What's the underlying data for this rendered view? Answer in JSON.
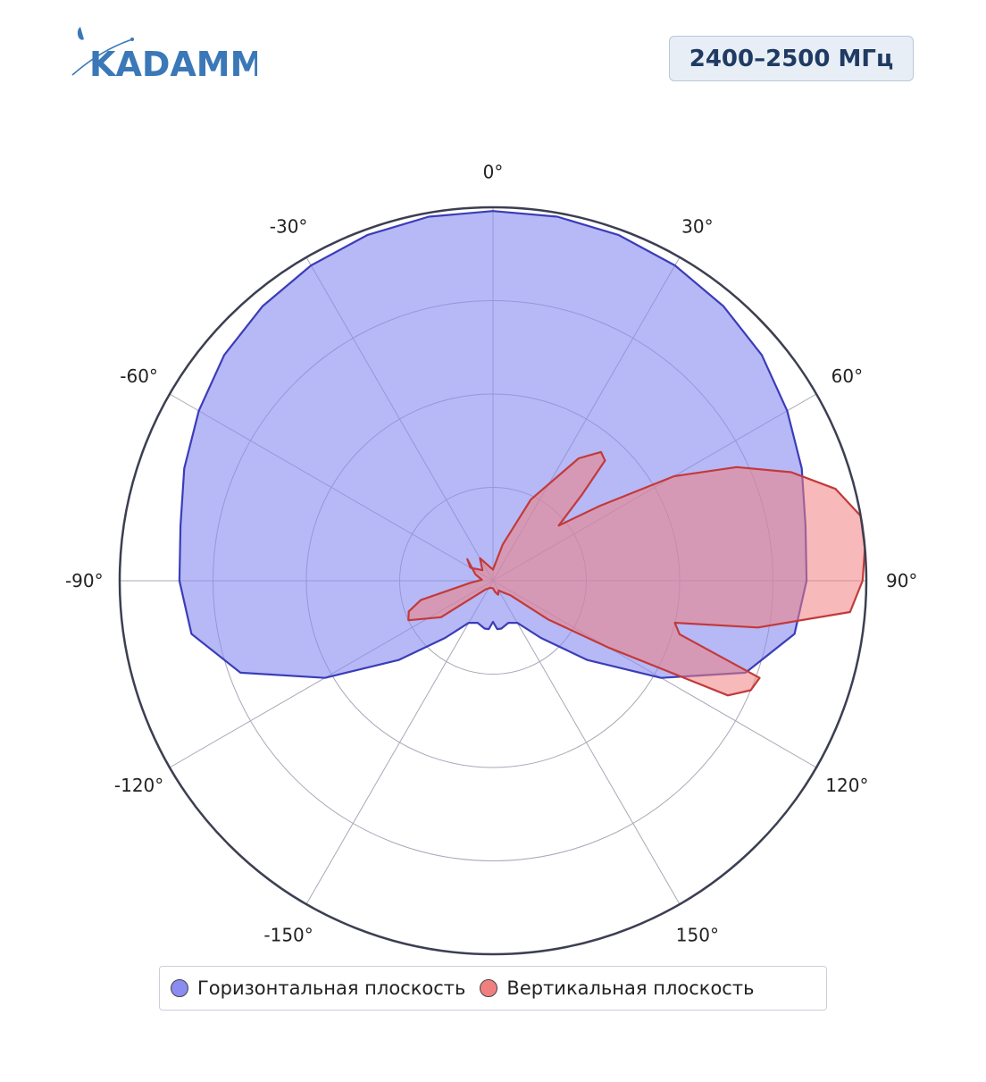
{
  "header": {
    "logo_text": "KADAMM",
    "frequency_label": "2400–2500 МГц"
  },
  "colors": {
    "horizontal_fill": "#8a8cf0",
    "horizontal_line": "#3a3db8",
    "vertical_fill": "#f08080",
    "vertical_line": "#c23a3a",
    "logo": "#3a78b8"
  },
  "chart_data": {
    "type": "polar-area",
    "title": "",
    "angular_unit": "deg",
    "angular_direction": "clockwise",
    "zero_at": "top",
    "angular_ticks": [
      0,
      30,
      60,
      90,
      120,
      150,
      -150,
      -120,
      -90,
      -60,
      -30
    ],
    "angular_tick_labels": [
      "0°",
      "30°",
      "60°",
      "90°",
      "120°",
      "150°",
      "-150°",
      "-120°",
      "-90°",
      "-60°",
      "-30°"
    ],
    "radial_range": [
      0,
      1
    ],
    "radial_gridlines": [
      0.25,
      0.5,
      0.75,
      1.0
    ],
    "grid": true,
    "legend_position": "bottom-center",
    "series": [
      {
        "name": "Горизонтальная плоскость",
        "theta": [
          0,
          10,
          20,
          30,
          40,
          50,
          60,
          70,
          80,
          90,
          100,
          110,
          120,
          130,
          140,
          150,
          160,
          170,
          175,
          180,
          185,
          190,
          200,
          210,
          220,
          230,
          240,
          250,
          260,
          270,
          280,
          290,
          300,
          310,
          320,
          330,
          340,
          350
        ],
        "r": [
          0.99,
          0.99,
          0.985,
          0.975,
          0.96,
          0.94,
          0.91,
          0.88,
          0.85,
          0.84,
          0.82,
          0.72,
          0.52,
          0.33,
          0.2,
          0.13,
          0.12,
          0.13,
          0.13,
          0.11,
          0.13,
          0.13,
          0.12,
          0.13,
          0.2,
          0.33,
          0.52,
          0.72,
          0.82,
          0.84,
          0.85,
          0.88,
          0.91,
          0.94,
          0.96,
          0.975,
          0.985,
          0.99
        ]
      },
      {
        "name": "Вертикальная плоскость",
        "theta": [
          -60,
          -45,
          -30,
          -15,
          0,
          15,
          25,
          35,
          40,
          43,
          46,
          50,
          55,
          60,
          65,
          70,
          75,
          80,
          85,
          90,
          95,
          100,
          103,
          106,
          110,
          113,
          116,
          120,
          125,
          130,
          140,
          150,
          160,
          170,
          180,
          200,
          220,
          235,
          245,
          250,
          255,
          265,
          275,
          290,
          310
        ],
        "r": [
          0.07,
          0.04,
          0.07,
          0.04,
          0.03,
          0.1,
          0.24,
          0.4,
          0.45,
          0.44,
          0.33,
          0.23,
          0.35,
          0.56,
          0.72,
          0.85,
          0.95,
          1.0,
          1.0,
          0.99,
          0.96,
          0.72,
          0.5,
          0.52,
          0.76,
          0.75,
          0.7,
          0.36,
          0.18,
          0.06,
          0.04,
          0.03,
          0.04,
          0.03,
          0.02,
          0.02,
          0.03,
          0.17,
          0.25,
          0.24,
          0.2,
          0.06,
          0.03,
          0.05,
          0.09
        ]
      }
    ]
  }
}
